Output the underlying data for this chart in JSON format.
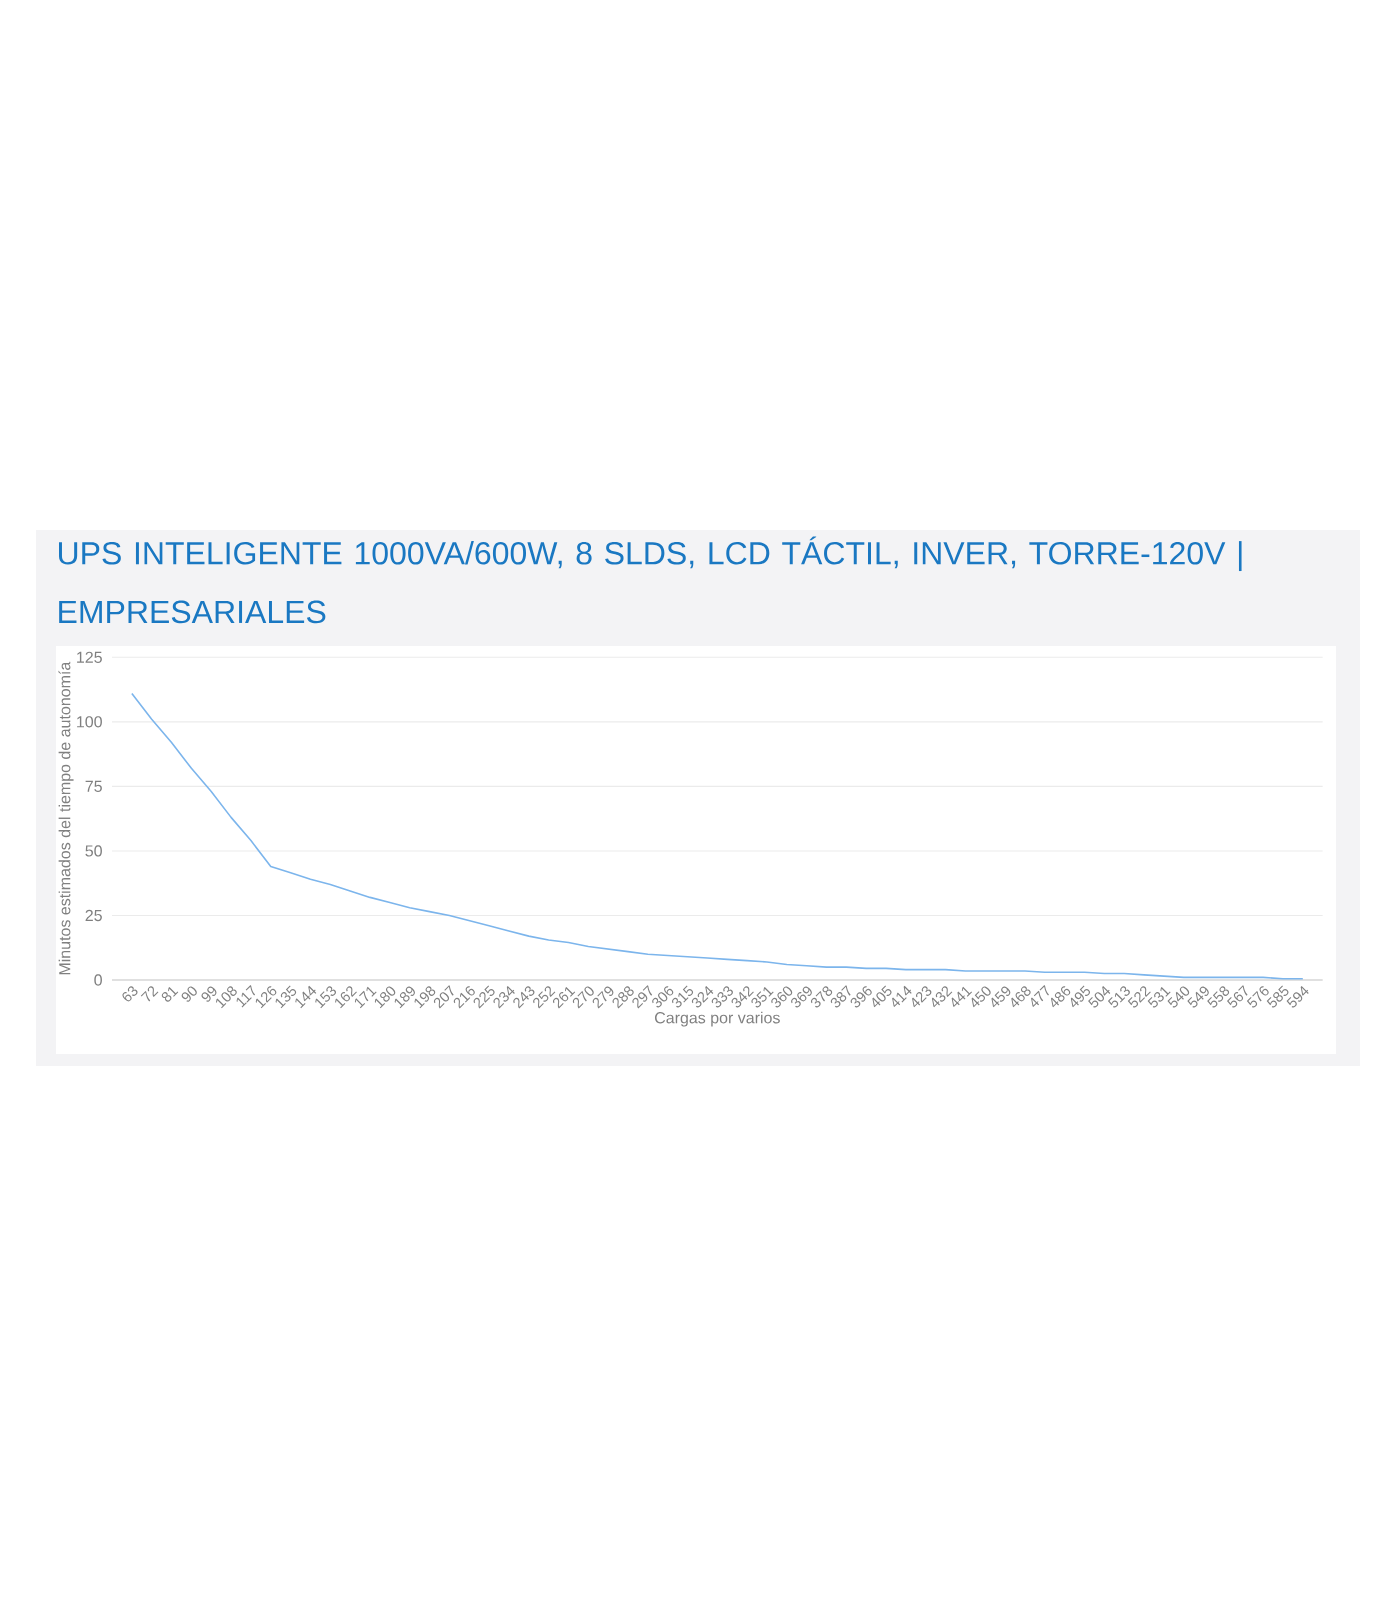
{
  "chart_data": {
    "type": "line",
    "title": "UPS INTELIGENTE 1000VA/600W, 8 SLDS, LCD TÁCTIL, INVER, TORRE-120V | EMPRESARIALES",
    "xlabel": "Cargas por varios",
    "ylabel": "Minutos estimados del tiempo de autonomía",
    "categories": [
      "63",
      "72",
      "81",
      "90",
      "99",
      "108",
      "117",
      "126",
      "135",
      "144",
      "153",
      "162",
      "171",
      "180",
      "189",
      "198",
      "207",
      "216",
      "225",
      "234",
      "243",
      "252",
      "261",
      "270",
      "279",
      "288",
      "297",
      "306",
      "315",
      "324",
      "333",
      "342",
      "351",
      "360",
      "369",
      "378",
      "387",
      "396",
      "405",
      "414",
      "423",
      "432",
      "441",
      "450",
      "459",
      "468",
      "477",
      "486",
      "495",
      "504",
      "513",
      "522",
      "531",
      "540",
      "549",
      "558",
      "567",
      "576",
      "585",
      "594"
    ],
    "series": [
      {
        "color": "#7cb5ec",
        "values": [
          111,
          101,
          92,
          82,
          73,
          63,
          54,
          44,
          41.5,
          39,
          37,
          34.5,
          32,
          30,
          28,
          26.5,
          25,
          23,
          21,
          19,
          17,
          15.5,
          14.5,
          13,
          12,
          11,
          10,
          9.5,
          9,
          8.5,
          8,
          7.5,
          7,
          6,
          5.5,
          5,
          5,
          4.5,
          4.5,
          4,
          4,
          4,
          3.5,
          3.5,
          3.5,
          3.5,
          3,
          3,
          3,
          2.5,
          2.5,
          2,
          1.5,
          1,
          1,
          1,
          1,
          1,
          0.5,
          0.5
        ]
      }
    ],
    "ylim": [
      0,
      125
    ],
    "yticks": [
      0,
      25,
      50,
      75,
      100,
      125
    ],
    "grid": "y",
    "marker": "none",
    "line_style": "solid"
  }
}
